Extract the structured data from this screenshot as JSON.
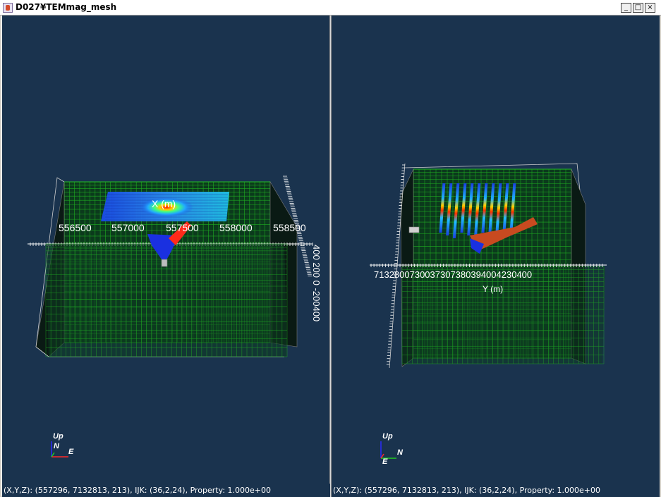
{
  "window": {
    "title": "D027¥TEMmag_mesh",
    "minimize_label": "_",
    "maximize_label": "□",
    "close_label": "×"
  },
  "left_view": {
    "x_axis_title": "X (m)",
    "x_ticks": [
      "556500",
      "557000",
      "557500",
      "558000",
      "558500"
    ],
    "z_ticks": [
      "400",
      "200",
      "0",
      "-200",
      "-400"
    ],
    "z_ticks_text": "400 200  0 -200400",
    "orientation": {
      "up": "Up",
      "n": "N",
      "e": "E"
    },
    "status": "(X,Y,Z): (557296, 7132813,    213), IJK: (36,2,24), Property: 1.000e+00"
  },
  "right_view": {
    "y_axis_title": "Y (m)",
    "y_ticks_text": "7132800730037307380394004230400",
    "orientation": {
      "up": "Up",
      "n": "N",
      "e": "E"
    },
    "status": "(X,Y,Z): (557296, 7132813,    213), IJK: (36,2,24), Property: 1.000e+00"
  },
  "colors": {
    "background": "#1a334e",
    "mesh_green": "#22c022",
    "anomaly_red": "#ff2a1a",
    "anomaly_blue": "#1a30e0",
    "axis_white": "#ffffff"
  }
}
